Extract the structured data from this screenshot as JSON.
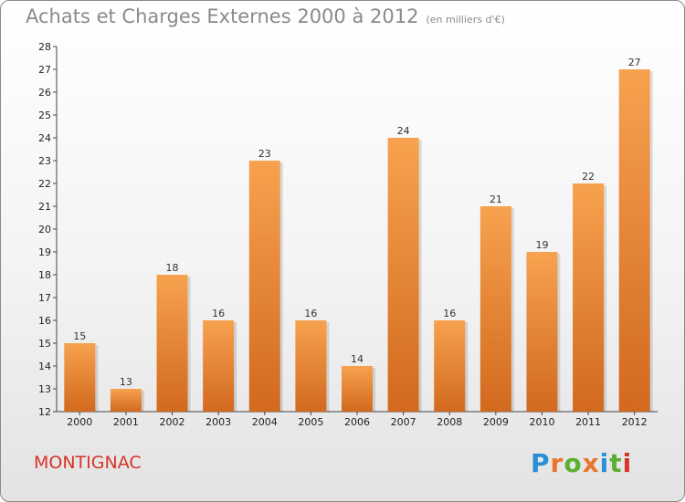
{
  "title": "Achats et Charges Externes 2000 à 2012",
  "subtitle": "(en milliers d'€)",
  "commune": "MONTIGNAC",
  "logo": {
    "letters": [
      "P",
      "r",
      "o",
      "x",
      "i",
      "t",
      "i"
    ],
    "colors": [
      "#2a8fd6",
      "#e8772e",
      "#5bb033",
      "#e8772e",
      "#2a8fd6",
      "#5bb033",
      "#d8342a"
    ]
  },
  "colors": {
    "bar_top": "#f7a24e",
    "bar_bottom": "#d2691e",
    "title": "#8a8a8a",
    "commune": "#d8342a"
  },
  "chart_data": {
    "type": "bar",
    "title": "Achats et Charges Externes 2000 à 2012",
    "subtitle": "(en milliers d'€)",
    "categories": [
      "2000",
      "2001",
      "2002",
      "2003",
      "2004",
      "2005",
      "2006",
      "2007",
      "2008",
      "2009",
      "2010",
      "2011",
      "2012"
    ],
    "values": [
      15,
      13,
      18,
      16,
      23,
      16,
      14,
      24,
      16,
      21,
      19,
      22,
      27
    ],
    "ylim": [
      12,
      28
    ],
    "yticks": [
      12,
      13,
      14,
      15,
      16,
      17,
      18,
      19,
      20,
      21,
      22,
      23,
      24,
      25,
      26,
      27,
      28
    ],
    "grid": false,
    "legend": "none"
  }
}
